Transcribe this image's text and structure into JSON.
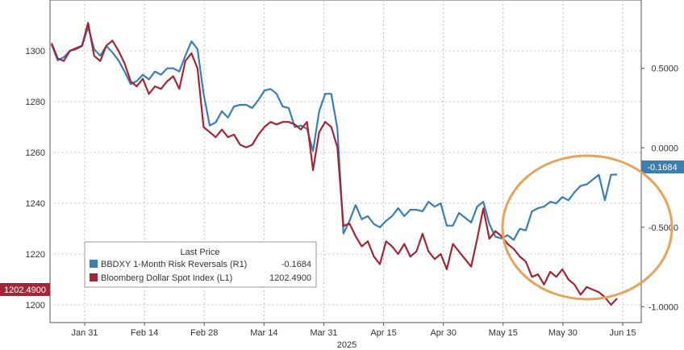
{
  "chart_data": {
    "type": "line",
    "title": "",
    "xlabel": "2025",
    "x_ticks": [
      "Jan 31",
      "Feb 14",
      "Feb 28",
      "Mar 14",
      "Mar 31",
      "Apr 15",
      "Apr 30",
      "May 15",
      "May 30",
      "Jun 15"
    ],
    "y_left": {
      "ticks": [
        1200,
        1220,
        1240,
        1260,
        1280,
        1300
      ],
      "lim": [
        1193,
        1320
      ]
    },
    "y_right": {
      "ticks": [
        "0.5000",
        "0.0000",
        "-0.5000",
        "-1.0000"
      ],
      "tick_values": [
        0.5,
        0.0,
        -0.5,
        -1.0
      ],
      "lim": [
        -1.1,
        0.93
      ]
    },
    "grid": true,
    "legend": {
      "title": "Last Price",
      "position": "bottom-left",
      "entries": [
        {
          "label": "BBDXY 1-Month Risk Reversals  (R1)",
          "value": "-0.1684",
          "color": "#3a7fb0"
        },
        {
          "label": "Bloomberg Dollar Spot Index  (L1)",
          "value": "1202.4900",
          "color": "#a32636"
        }
      ]
    },
    "last_value_tags": {
      "right": "-0.1684",
      "left": "1202.4900"
    },
    "series": [
      {
        "name": "BBDXY 1-Month Risk Reversals",
        "axis": "right",
        "color": "#3a7fb0",
        "values": [
          0.65,
          0.55,
          0.57,
          0.61,
          0.62,
          0.64,
          0.76,
          0.62,
          0.58,
          0.64,
          0.6,
          0.55,
          0.48,
          0.4,
          0.42,
          0.46,
          0.43,
          0.48,
          0.46,
          0.5,
          0.5,
          0.48,
          0.58,
          0.67,
          0.62,
          0.34,
          0.14,
          0.16,
          0.23,
          0.19,
          0.26,
          0.27,
          0.27,
          0.25,
          0.3,
          0.36,
          0.37,
          0.34,
          0.26,
          0.25,
          0.13,
          0.14,
          0.12,
          -0.02,
          0.23,
          0.34,
          0.34,
          0.12,
          -0.54,
          -0.46,
          -0.36,
          -0.45,
          -0.43,
          -0.48,
          -0.5,
          -0.46,
          -0.43,
          -0.38,
          -0.43,
          -0.39,
          -0.39,
          -0.4,
          -0.34,
          -0.37,
          -0.35,
          -0.49,
          -0.49,
          -0.41,
          -0.44,
          -0.47,
          -0.37,
          -0.34,
          -0.48,
          -0.56,
          -0.57,
          -0.55,
          -0.58,
          -0.51,
          -0.52,
          -0.4,
          -0.38,
          -0.37,
          -0.34,
          -0.35,
          -0.31,
          -0.33,
          -0.28,
          -0.24,
          -0.23,
          -0.2,
          -0.17,
          -0.33,
          -0.17,
          -0.1684
        ]
      },
      {
        "name": "Bloomberg Dollar Spot Index",
        "axis": "left",
        "color": "#a32636",
        "values": [
          1303,
          1297,
          1296,
          1300,
          1301,
          1302,
          1311,
          1298,
          1296,
          1302,
          1304,
          1300,
          1295,
          1288,
          1286,
          1289,
          1283,
          1286,
          1285,
          1288,
          1290,
          1285,
          1296,
          1299,
          1293,
          1270,
          1268,
          1266,
          1269,
          1266,
          1267,
          1263,
          1262,
          1263,
          1267,
          1270,
          1272,
          1271,
          1272,
          1272,
          1271,
          1269,
          1272,
          1253,
          1268,
          1272,
          1270,
          1262,
          1231,
          1232,
          1227,
          1223,
          1225,
          1219,
          1216,
          1225,
          1223,
          1220,
          1224,
          1219,
          1221,
          1228,
          1221,
          1218,
          1220,
          1214,
          1224,
          1221,
          1218,
          1215,
          1226,
          1238,
          1226,
          1229,
          1227,
          1224,
          1222,
          1219,
          1217,
          1211,
          1212,
          1208,
          1213,
          1211,
          1214,
          1210,
          1208,
          1204,
          1207,
          1206,
          1205,
          1203,
          1200,
          1202.49
        ]
      }
    ]
  }
}
